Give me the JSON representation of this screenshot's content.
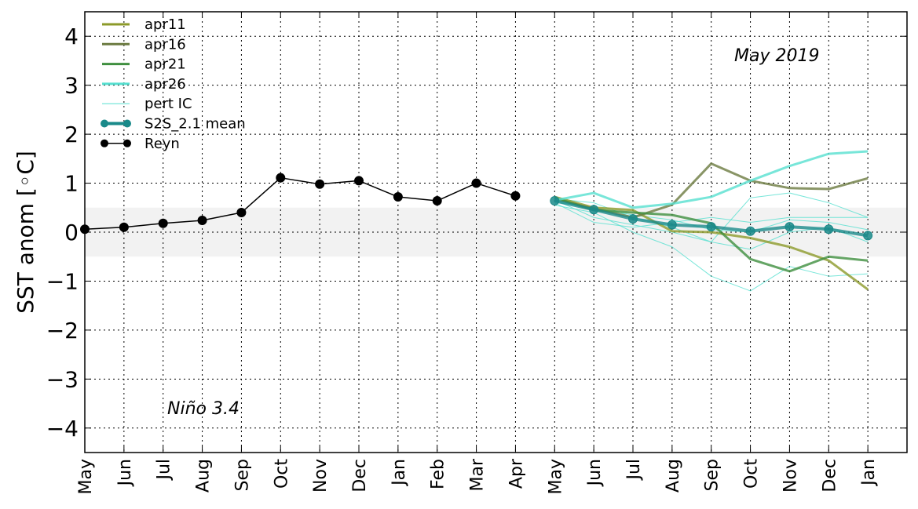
{
  "chart_data": {
    "type": "line",
    "ylabel": "SST anom [°C]",
    "ylabel_text": "SST anom [",
    "ylabel_unit": "◦C]",
    "ylim": [
      -4.5,
      4.5
    ],
    "yticks": [
      -4,
      -3,
      -2,
      -1,
      0,
      1,
      2,
      3,
      4
    ],
    "ytick_labels": [
      "−4",
      "−3",
      "−2",
      "−1",
      "0",
      "1",
      "2",
      "3",
      "4"
    ],
    "x_labels": [
      "May",
      "Jun",
      "Jul",
      "Aug",
      "Sep",
      "Oct",
      "Nov",
      "Dec",
      "Jan",
      "Feb",
      "Mar",
      "Apr",
      "May",
      "Jun",
      "Jul",
      "Aug",
      "Sep",
      "Oct",
      "Nov",
      "Dec",
      "Jan"
    ],
    "xlim": [
      0,
      21
    ],
    "grid": true,
    "neutral_band": [
      -0.5,
      0.5
    ],
    "annotations": [
      {
        "id": "date",
        "text": "May 2019"
      },
      {
        "id": "region",
        "text": "Niño 3.4"
      }
    ],
    "legend": {
      "placement": "top-left",
      "entries": [
        {
          "label": "apr11",
          "color": "#8c9a2a"
        },
        {
          "label": "apr16",
          "color": "#6b7a40"
        },
        {
          "label": "apr21",
          "color": "#3f8f3f"
        },
        {
          "label": "apr26",
          "color": "#56e0d0"
        },
        {
          "label": "pert IC",
          "color": "#56e0d0"
        },
        {
          "label": "S2S_2.1 mean",
          "color": "#1a8a8a"
        },
        {
          "label": "Reyn",
          "color": "#000000"
        }
      ]
    },
    "series": [
      {
        "name": "Reyn",
        "color": "#000000",
        "x": [
          0,
          1,
          2,
          3,
          4,
          5,
          6,
          7,
          8,
          9,
          10,
          11
        ],
        "values": [
          0.06,
          0.1,
          0.18,
          0.24,
          0.4,
          1.11,
          0.98,
          1.05,
          0.72,
          0.64,
          1.0,
          0.74
        ]
      },
      {
        "name": "apr11",
        "color": "#8c9a2a",
        "x": [
          12,
          13,
          14,
          15,
          16,
          17,
          18,
          19,
          20
        ],
        "values": [
          0.72,
          0.5,
          0.45,
          0.02,
          0.0,
          -0.12,
          -0.3,
          -0.58,
          -1.17
        ]
      },
      {
        "name": "apr16",
        "color": "#6b7a40",
        "x": [
          12,
          13,
          14,
          15,
          16,
          17,
          18,
          19,
          20
        ],
        "values": [
          0.68,
          0.48,
          0.3,
          0.56,
          1.4,
          1.05,
          0.9,
          0.88,
          1.1
        ]
      },
      {
        "name": "apr21",
        "color": "#3f8f3f",
        "x": [
          12,
          13,
          14,
          15,
          16,
          17,
          18,
          19,
          20
        ],
        "values": [
          0.7,
          0.45,
          0.4,
          0.35,
          0.18,
          -0.55,
          -0.8,
          -0.5,
          -0.58
        ]
      },
      {
        "name": "apr26",
        "color": "#56e0d0",
        "x": [
          12,
          13,
          14,
          15,
          16,
          17,
          18,
          19,
          20
        ],
        "values": [
          0.65,
          0.8,
          0.5,
          0.58,
          0.72,
          1.05,
          1.35,
          1.6,
          1.65
        ]
      },
      {
        "name": "pert IC",
        "color": "#56e0d0",
        "thin": true,
        "x": [
          12,
          13,
          14,
          15,
          16,
          17,
          18,
          19,
          20
        ],
        "values": [
          0.68,
          0.6,
          0.3,
          0.1,
          -0.2,
          0.7,
          0.8,
          0.6,
          0.3
        ]
      },
      {
        "name": "pert IC",
        "color": "#56e0d0",
        "thin": true,
        "x": [
          12,
          13,
          14,
          15,
          16,
          17,
          18,
          19,
          20
        ],
        "values": [
          0.55,
          0.4,
          0.0,
          -0.3,
          -0.9,
          -1.2,
          -0.7,
          -0.9,
          -0.85
        ]
      },
      {
        "name": "pert IC",
        "color": "#56e0d0",
        "thin": true,
        "x": [
          12,
          13,
          14,
          15,
          16,
          17,
          18,
          19,
          20
        ],
        "values": [
          0.6,
          0.2,
          0.1,
          0.2,
          0.3,
          0.2,
          0.3,
          0.3,
          0.3
        ]
      },
      {
        "name": "pert IC",
        "color": "#56e0d0",
        "thin": true,
        "x": [
          12,
          13,
          14,
          15,
          16,
          17,
          18,
          19,
          20
        ],
        "values": [
          0.66,
          0.3,
          0.15,
          0.0,
          -0.2,
          -0.35,
          0.0,
          0.1,
          -0.2
        ]
      },
      {
        "name": "pert IC",
        "color": "#56e0d0",
        "thin": true,
        "x": [
          12,
          13,
          14,
          15,
          16,
          17,
          18,
          19,
          20
        ],
        "values": [
          0.62,
          0.5,
          0.35,
          0.25,
          0.05,
          0.0,
          0.25,
          0.2,
          0.05
        ]
      },
      {
        "name": "S2S_2.1 mean",
        "color": "#1a8a8a",
        "thick": true,
        "x": [
          12,
          13,
          14,
          15,
          16,
          17,
          18,
          19,
          20
        ],
        "values": [
          0.64,
          0.46,
          0.27,
          0.15,
          0.11,
          0.02,
          0.11,
          0.06,
          -0.07
        ]
      }
    ]
  }
}
